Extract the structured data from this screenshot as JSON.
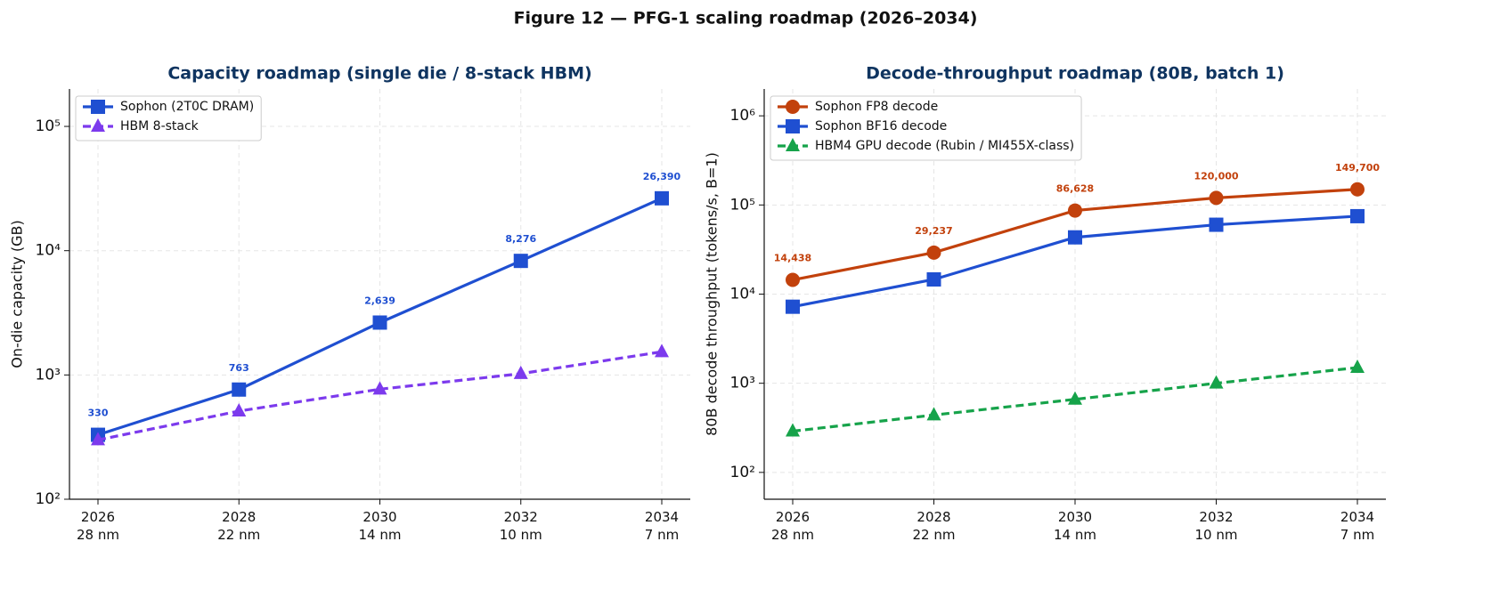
{
  "title": "Figure 12 — PFG-1 scaling roadmap (2026–2034)",
  "chart_data": [
    {
      "type": "line",
      "title": "Capacity roadmap (single die / 8-stack HBM)",
      "ylabel": "On-die capacity (GB)",
      "log_y": true,
      "grid": true,
      "legend": "upper left",
      "categories": [
        "2026\n28 nm",
        "2028\n22 nm",
        "2030\n14 nm",
        "2032\n10 nm",
        "2034\n7 nm"
      ],
      "ylim": [
        100,
        200000
      ],
      "yticks": [
        {
          "value": 100,
          "label": "10²"
        },
        {
          "value": 1000,
          "label": "10³"
        },
        {
          "value": 10000,
          "label": "10⁴"
        },
        {
          "value": 100000,
          "label": "10⁵"
        }
      ],
      "series": [
        {
          "name": "Sophon (2T0C DRAM)",
          "color": "#1f4fd1",
          "marker": "square",
          "linestyle": "solid",
          "values": [
            330,
            763,
            2639,
            8276,
            26390
          ],
          "value_labels": [
            "330",
            "763",
            "2,639",
            "8,276",
            "26,390"
          ]
        },
        {
          "name": "HBM 8-stack",
          "color": "#7c3aed",
          "marker": "triangle",
          "linestyle": "dashed",
          "values": [
            300,
            512,
            768,
            1024,
            1536
          ]
        }
      ]
    },
    {
      "type": "line",
      "title": "Decode-throughput roadmap (80B, batch 1)",
      "ylabel": "80B decode throughput (tokens/s, B=1)",
      "log_y": true,
      "grid": true,
      "legend": "upper left",
      "categories": [
        "2026\n28 nm",
        "2028\n22 nm",
        "2030\n14 nm",
        "2032\n10 nm",
        "2034\n7 nm"
      ],
      "ylim": [
        50,
        2000000
      ],
      "yticks": [
        {
          "value": 100,
          "label": "10²"
        },
        {
          "value": 1000,
          "label": "10³"
        },
        {
          "value": 10000,
          "label": "10⁴"
        },
        {
          "value": 100000,
          "label": "10⁵"
        },
        {
          "value": 1000000,
          "label": "10⁶"
        }
      ],
      "series": [
        {
          "name": "Sophon FP8 decode",
          "color": "#c2410c",
          "marker": "circle",
          "linestyle": "solid",
          "values": [
            14438,
            29237,
            86628,
            120000,
            149700
          ],
          "value_labels": [
            "14,438",
            "29,237",
            "86,628",
            "120,000",
            "149,700"
          ]
        },
        {
          "name": "Sophon BF16 decode",
          "color": "#1f4fd1",
          "marker": "square",
          "linestyle": "solid",
          "values": [
            7219,
            14619,
            43314,
            60000,
            74850
          ]
        },
        {
          "name": "HBM4 GPU decode (Rubin / MI455X-class)",
          "color": "#16a34a",
          "marker": "triangle",
          "linestyle": "dashed",
          "values": [
            290,
            440,
            660,
            1000,
            1500
          ]
        }
      ]
    }
  ]
}
